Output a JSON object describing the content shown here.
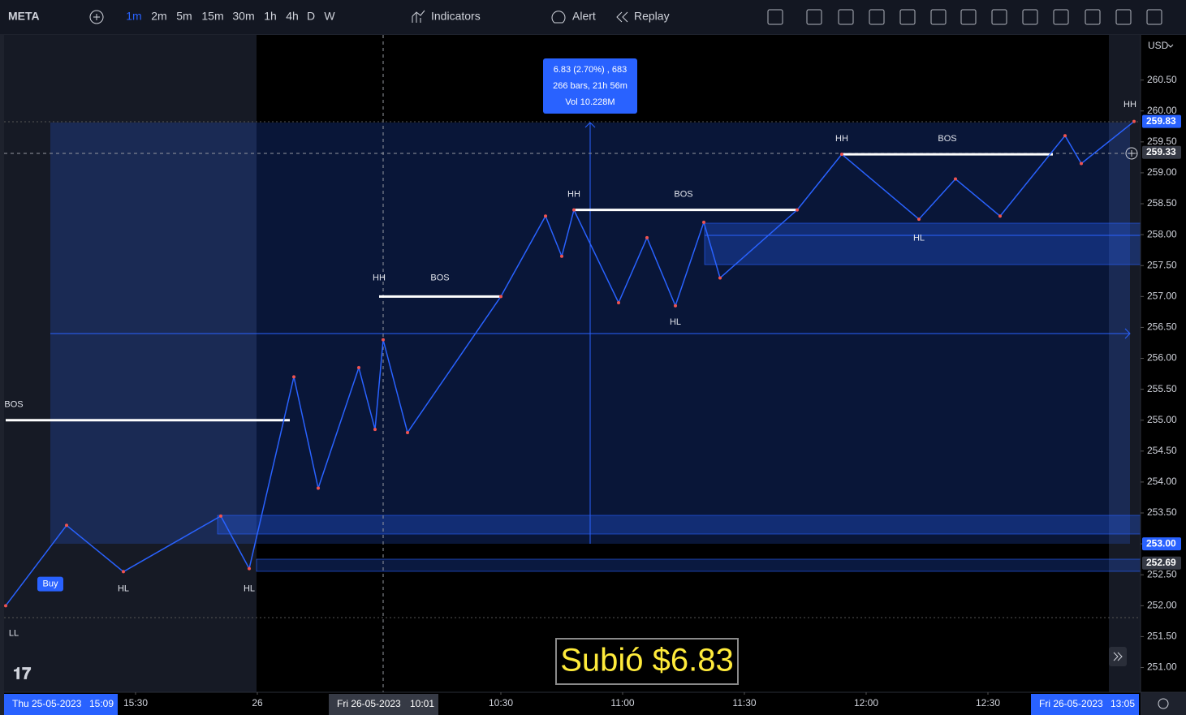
{
  "toolbar": {
    "symbol": "META",
    "intervals": [
      "1m",
      "2m",
      "5m",
      "15m",
      "30m",
      "1h",
      "4h",
      "D",
      "W"
    ],
    "active_interval": 0,
    "indicators": "Indicators",
    "alert": "Alert",
    "replay": "Replay"
  },
  "chart_data": {
    "type": "line",
    "color": "#2962ff",
    "currency": "USD",
    "x": [
      -32,
      -17,
      -3,
      21,
      28,
      39,
      45,
      55,
      59,
      61,
      67,
      90,
      101,
      105,
      108,
      119,
      126,
      133,
      140,
      144,
      163,
      174,
      193,
      202,
      213,
      229,
      233,
      246
    ],
    "values": [
      252.0,
      253.3,
      252.55,
      253.45,
      252.6,
      255.7,
      253.9,
      255.85,
      254.85,
      256.3,
      254.8,
      257.0,
      258.3,
      257.65,
      258.4,
      256.9,
      257.95,
      256.85,
      258.2,
      257.3,
      258.4,
      259.3,
      258.25,
      258.9,
      258.3,
      259.6,
      259.15,
      259.83
    ],
    "xlim": [
      -32.4,
      247.6
    ],
    "ylim": [
      250.6,
      261.23
    ],
    "xticks": [
      {
        "value": 0,
        "label": "15:30"
      },
      {
        "value": 30,
        "label": "26"
      },
      {
        "value": 90,
        "label": "10:30"
      },
      {
        "value": 120,
        "label": "11:00"
      },
      {
        "value": 150,
        "label": "11:30"
      },
      {
        "value": 180,
        "label": "12:00"
      },
      {
        "value": 210,
        "label": "12:30"
      }
    ],
    "yticks": [
      {
        "value": 251,
        "label": "251.00"
      },
      {
        "value": 251.5,
        "label": "251.50"
      },
      {
        "value": 252,
        "label": "252.00"
      },
      {
        "value": 252.5,
        "label": "252.50"
      },
      {
        "value": 253,
        "label": "253.00"
      },
      {
        "value": 253.5,
        "label": "253.50"
      },
      {
        "value": 254,
        "label": "254.00"
      },
      {
        "value": 254.5,
        "label": "254.50"
      },
      {
        "value": 255,
        "label": "255.00"
      },
      {
        "value": 255.5,
        "label": "255.50"
      },
      {
        "value": 256,
        "label": "256.00"
      },
      {
        "value": 256.5,
        "label": "256.50"
      },
      {
        "value": 257,
        "label": "257.00"
      },
      {
        "value": 257.5,
        "label": "257.50"
      },
      {
        "value": 258,
        "label": "258.00"
      },
      {
        "value": 258.5,
        "label": "258.50"
      },
      {
        "value": 259,
        "label": "259.00"
      },
      {
        "value": 259.5,
        "label": "259.50"
      },
      {
        "value": 260,
        "label": "260.00"
      },
      {
        "value": 260.5,
        "label": "260.50"
      }
    ],
    "badges": [
      {
        "price": 259.83,
        "color": "#2962ff"
      },
      {
        "price": 259.33,
        "color": "#363a45"
      },
      {
        "price": {
          "value": 253,
          "label": "253.00"
        },
        "color": "#2962ff"
      },
      {
        "price": 252.69,
        "color": "#363a45"
      }
    ],
    "levels": [
      {
        "price": 255.0,
        "x0": -32,
        "x1": 38
      },
      {
        "price": 257.0,
        "x0": 60,
        "x1": 90
      },
      {
        "price": 258.4,
        "x0": 108,
        "x1": 163
      },
      {
        "price": 259.3,
        "x0": 174,
        "x1": 226
      }
    ],
    "annotations": [
      {
        "text": "BOS",
        "x": -30,
        "price": 255.25
      },
      {
        "text": "HH",
        "x": 60,
        "price": 257.3
      },
      {
        "text": "BOS",
        "x": 75,
        "price": 257.3
      },
      {
        "text": "HH",
        "x": 108,
        "price": 258.65
      },
      {
        "text": "BOS",
        "x": 135,
        "price": 258.65
      },
      {
        "text": "HH",
        "x": 174,
        "price": 259.55
      },
      {
        "text": "BOS",
        "x": 200,
        "price": 259.55
      },
      {
        "text": "HH",
        "x": 245,
        "price": 260.1
      },
      {
        "text": "HL",
        "x": -3,
        "price": 252.27
      },
      {
        "text": "HL",
        "x": 28,
        "price": 252.27
      },
      {
        "text": "HL",
        "x": 133,
        "price": 256.58
      },
      {
        "text": "HL",
        "x": 193,
        "price": 257.94
      },
      {
        "text": "LL",
        "x": -30,
        "price": 251.55
      }
    ],
    "buy": {
      "text": "Buy",
      "x": -21,
      "price": 252.35
    }
  },
  "measurement": {
    "lines": [
      "6.83 (2.70%) , 683",
      "266 bars, 21h 56m",
      "Vol 10.228M"
    ]
  },
  "banner": "Subió $6.83",
  "time_axis": {
    "highlights": [
      {
        "date": "Thu 25-05-2023",
        "time": "15:09"
      },
      {
        "date": "Fri 26-05-2023",
        "time": "10:01"
      },
      {
        "date": "Fri 26-05-2023",
        "time": "13:05"
      }
    ]
  }
}
